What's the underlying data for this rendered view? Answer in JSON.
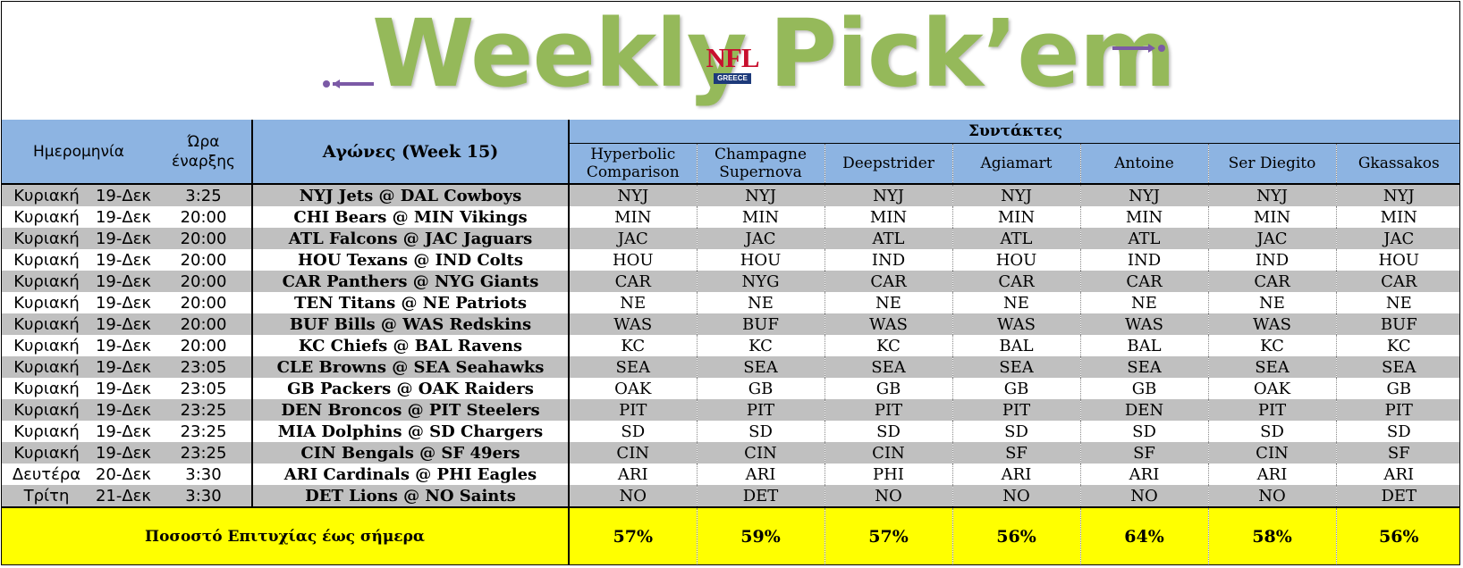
{
  "banner": {
    "title_left": "Weekly",
    "title_right": "Pick’em",
    "logo_text": "NFL",
    "logo_sub": "GREECE"
  },
  "colors": {
    "title_green": "#95b95a",
    "header_blue": "#8db4e2",
    "row_gray": "#c0c0c0",
    "footer_yellow": "#ffff00",
    "arrow_purple": "#7b5aa6"
  },
  "headers": {
    "date": "Ημερομηνία",
    "time_line1": "Ώρα",
    "time_line2": "έναρξης",
    "games": "Αγώνες (Week 15)",
    "editors": "Συντάκτες"
  },
  "editors": [
    {
      "line1": "Hyperbolic",
      "line2": "Comparison"
    },
    {
      "line1": "Champagne",
      "line2": "Supernova"
    },
    {
      "line1": "Deepstrider",
      "line2": ""
    },
    {
      "line1": "Agiamart",
      "line2": ""
    },
    {
      "line1": "Antoine",
      "line2": ""
    },
    {
      "line1": "Ser Diegito",
      "line2": ""
    },
    {
      "line1": "Gkassakos",
      "line2": ""
    }
  ],
  "games": [
    {
      "day": "Κυριακή",
      "date": "19-Δεκ",
      "time": "3:25",
      "match": "NYJ Jets @ DAL Cowboys",
      "picks": [
        "NYJ",
        "NYJ",
        "NYJ",
        "NYJ",
        "NYJ",
        "NYJ",
        "NYJ"
      ]
    },
    {
      "day": "Κυριακή",
      "date": "19-Δεκ",
      "time": "20:00",
      "match": "CHI Bears @ MIN Vikings",
      "picks": [
        "MIN",
        "MIN",
        "MIN",
        "MIN",
        "MIN",
        "MIN",
        "MIN"
      ]
    },
    {
      "day": "Κυριακή",
      "date": "19-Δεκ",
      "time": "20:00",
      "match": "ATL Falcons @ JAC Jaguars",
      "picks": [
        "JAC",
        "JAC",
        "ATL",
        "ATL",
        "ATL",
        "JAC",
        "JAC"
      ]
    },
    {
      "day": "Κυριακή",
      "date": "19-Δεκ",
      "time": "20:00",
      "match": "HOU Texans @ IND Colts",
      "picks": [
        "HOU",
        "HOU",
        "IND",
        "HOU",
        "IND",
        "IND",
        "HOU"
      ]
    },
    {
      "day": "Κυριακή",
      "date": "19-Δεκ",
      "time": "20:00",
      "match": "CAR Panthers @ NYG Giants",
      "picks": [
        "CAR",
        "NYG",
        "CAR",
        "CAR",
        "CAR",
        "CAR",
        "CAR"
      ]
    },
    {
      "day": "Κυριακή",
      "date": "19-Δεκ",
      "time": "20:00",
      "match": "TEN Titans @ NE Patriots",
      "picks": [
        "NE",
        "NE",
        "NE",
        "NE",
        "NE",
        "NE",
        "NE"
      ]
    },
    {
      "day": "Κυριακή",
      "date": "19-Δεκ",
      "time": "20:00",
      "match": "BUF Bills @ WAS Redskins",
      "picks": [
        "WAS",
        "BUF",
        "WAS",
        "WAS",
        "WAS",
        "WAS",
        "BUF"
      ]
    },
    {
      "day": "Κυριακή",
      "date": "19-Δεκ",
      "time": "20:00",
      "match": "KC Chiefs @ BAL Ravens",
      "picks": [
        "KC",
        "KC",
        "KC",
        "BAL",
        "BAL",
        "KC",
        "KC"
      ]
    },
    {
      "day": "Κυριακή",
      "date": "19-Δεκ",
      "time": "23:05",
      "match": "CLE Browns @ SEA Seahawks",
      "picks": [
        "SEA",
        "SEA",
        "SEA",
        "SEA",
        "SEA",
        "SEA",
        "SEA"
      ]
    },
    {
      "day": "Κυριακή",
      "date": "19-Δεκ",
      "time": "23:05",
      "match": "GB Packers @ OAK Raiders",
      "picks": [
        "OAK",
        "GB",
        "GB",
        "GB",
        "GB",
        "OAK",
        "GB"
      ]
    },
    {
      "day": "Κυριακή",
      "date": "19-Δεκ",
      "time": "23:25",
      "match": "DEN Broncos @ PIT Steelers",
      "picks": [
        "PIT",
        "PIT",
        "PIT",
        "PIT",
        "DEN",
        "PIT",
        "PIT"
      ]
    },
    {
      "day": "Κυριακή",
      "date": "19-Δεκ",
      "time": "23:25",
      "match": "MIA Dolphins @ SD Chargers",
      "picks": [
        "SD",
        "SD",
        "SD",
        "SD",
        "SD",
        "SD",
        "SD"
      ]
    },
    {
      "day": "Κυριακή",
      "date": "19-Δεκ",
      "time": "23:25",
      "match": "CIN Bengals @ SF 49ers",
      "picks": [
        "CIN",
        "CIN",
        "CIN",
        "SF",
        "SF",
        "CIN",
        "SF"
      ]
    },
    {
      "day": "Δευτέρα",
      "date": "20-Δεκ",
      "time": "3:30",
      "match": "ARI Cardinals @ PHI Eagles",
      "picks": [
        "ARI",
        "ARI",
        "PHI",
        "ARI",
        "ARI",
        "ARI",
        "ARI"
      ]
    },
    {
      "day": "Τρίτη",
      "date": "21-Δεκ",
      "time": "3:30",
      "match": "DET Lions @ NO Saints",
      "picks": [
        "NO",
        "DET",
        "NO",
        "NO",
        "NO",
        "NO",
        "DET"
      ]
    }
  ],
  "footer": {
    "label": "Ποσοστό Επιτυχίας έως σήμερα",
    "percentages": [
      "57%",
      "59%",
      "57%",
      "56%",
      "64%",
      "58%",
      "56%"
    ]
  }
}
